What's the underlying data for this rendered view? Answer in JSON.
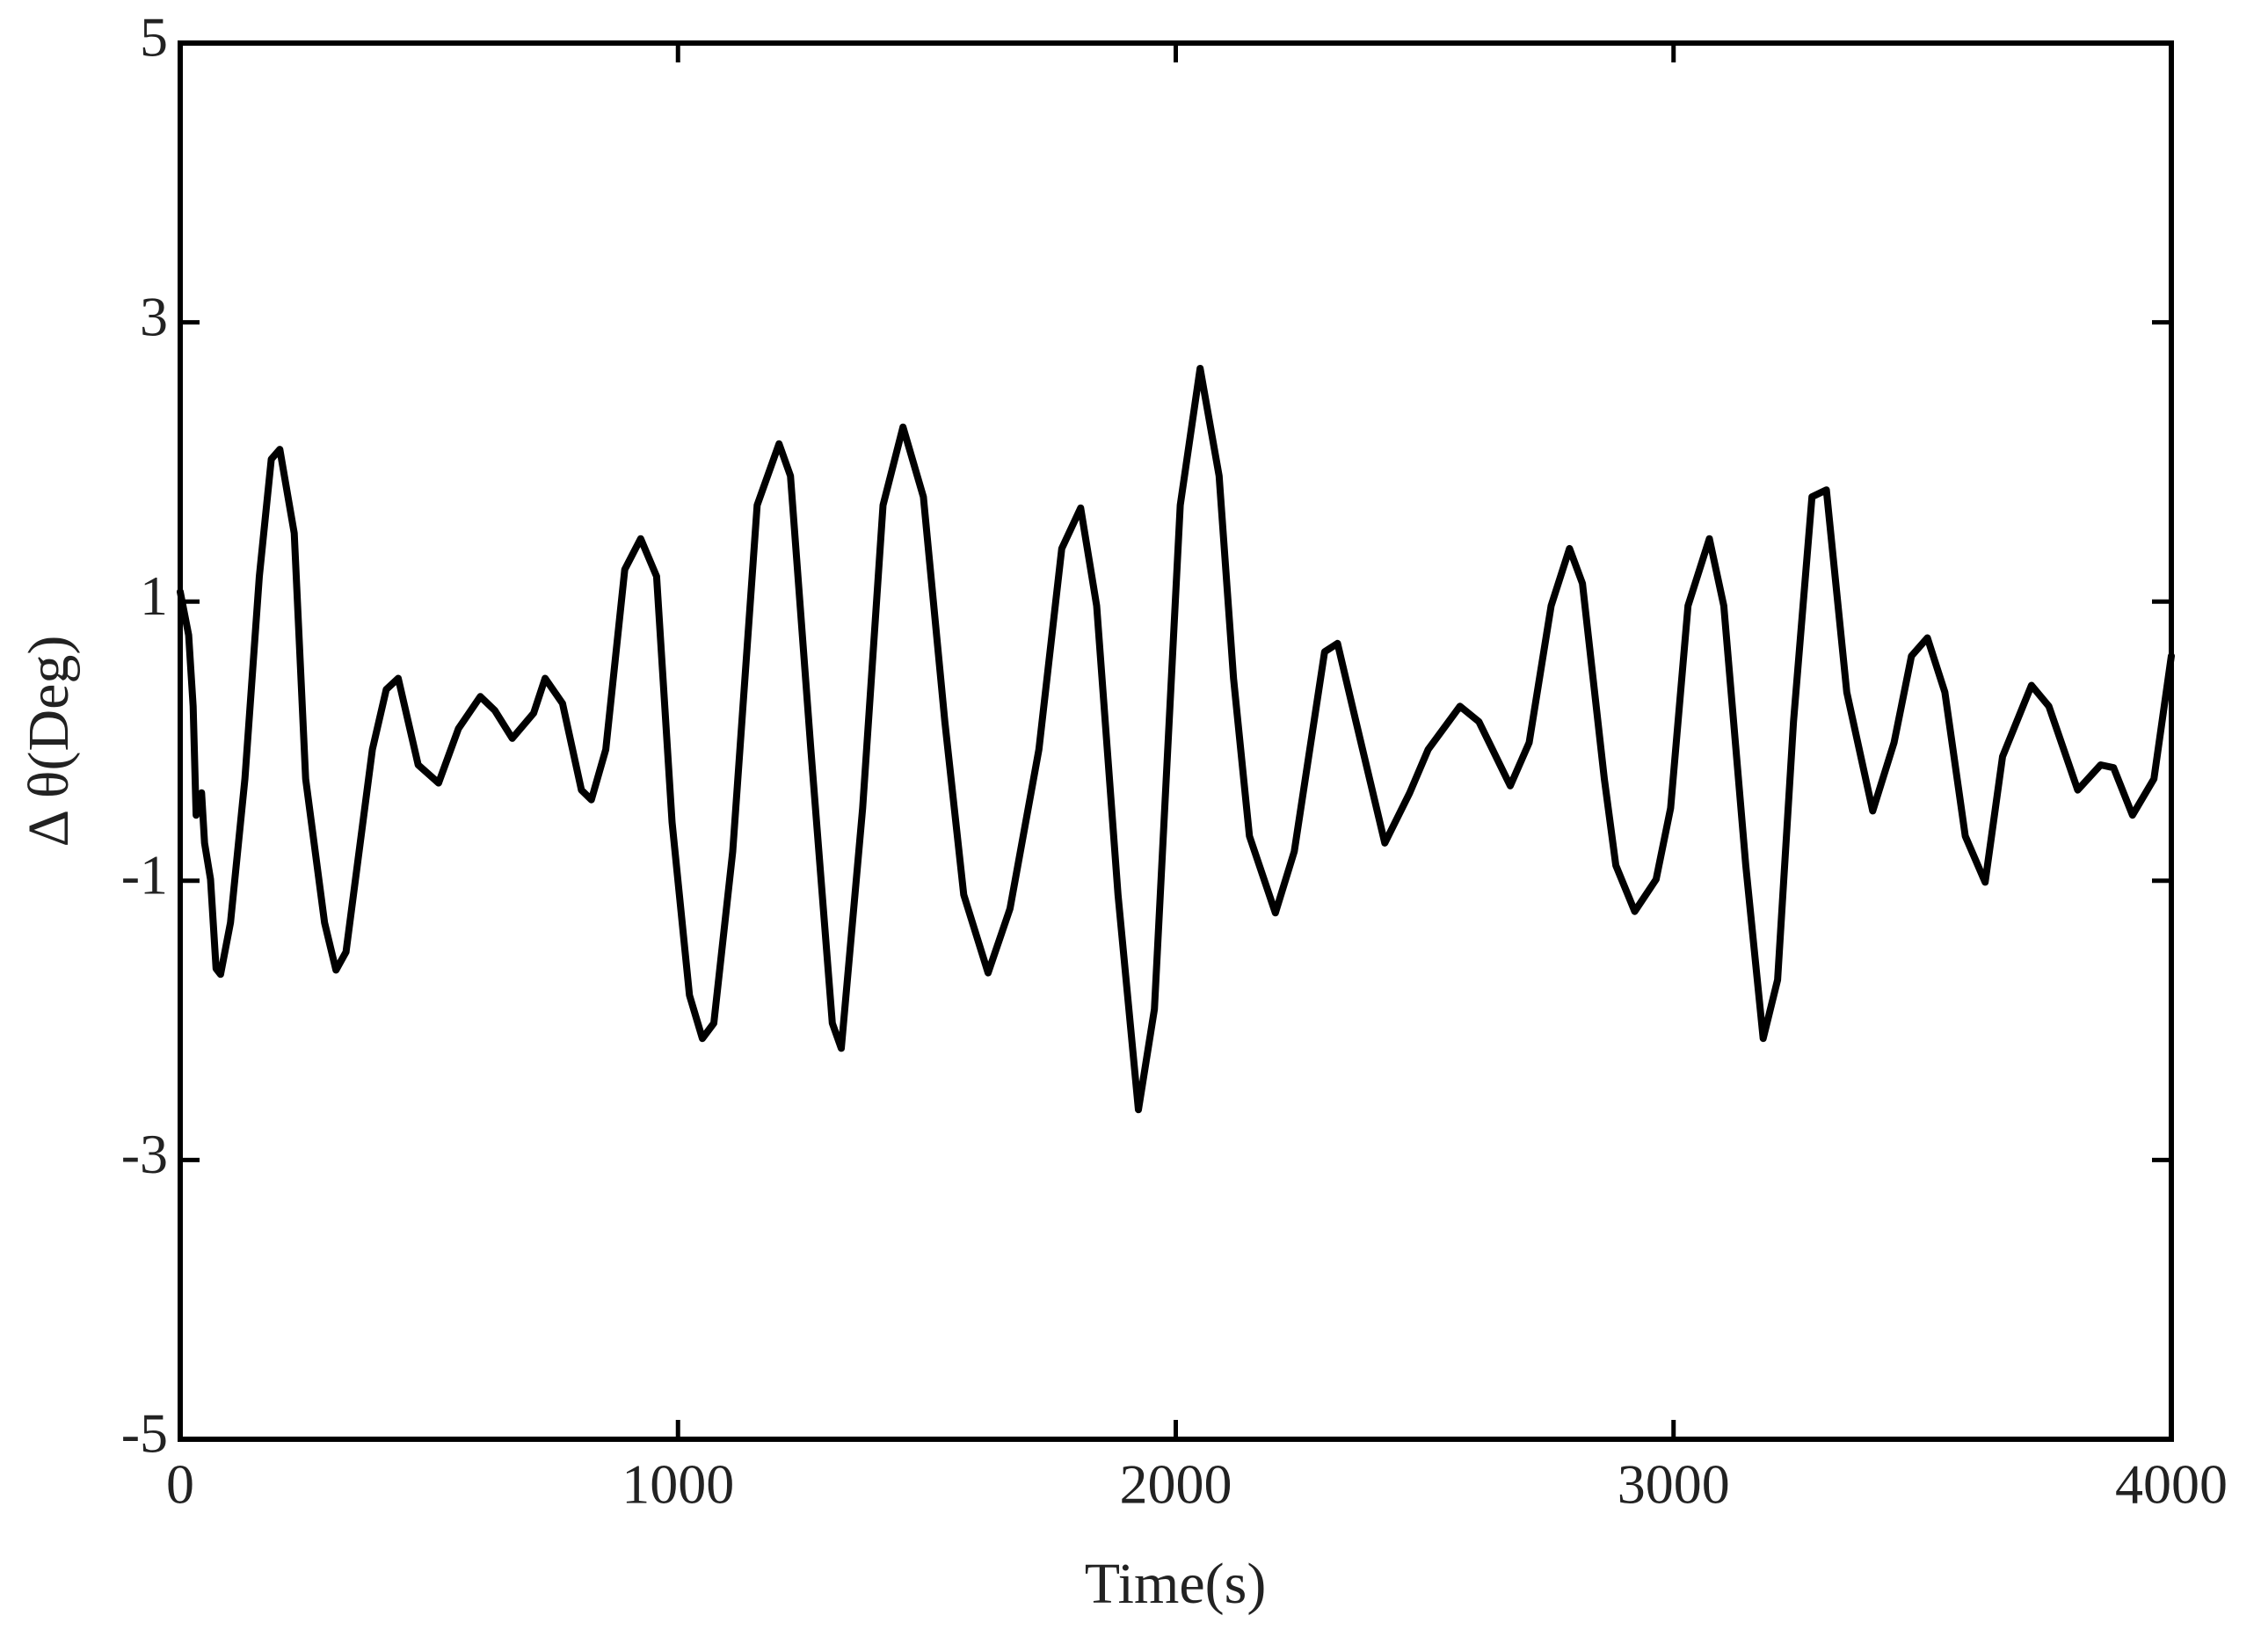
{
  "chart_data": {
    "type": "line",
    "xlabel": "Time(s)",
    "ylabel": "Δ θ(Deg)",
    "x": [
      0,
      17,
      26,
      32,
      43,
      49,
      61,
      72,
      81,
      101,
      130,
      159,
      183,
      200,
      229,
      252,
      290,
      313,
      333,
      386,
      414,
      438,
      478,
      519,
      559,
      603,
      632,
      667,
      710,
      733,
      768,
      806,
      826,
      855,
      893,
      925,
      957,
      988,
      1023,
      1049,
      1072,
      1110,
      1159,
      1203,
      1226,
      1267,
      1310,
      1328,
      1371,
      1412,
      1452,
      1493,
      1536,
      1574,
      1623,
      1667,
      1725,
      1771,
      1809,
      1841,
      1884,
      1925,
      1957,
      2009,
      2049,
      2087,
      2116,
      2148,
      2200,
      2238,
      2299,
      2325,
      2362,
      2420,
      2470,
      2507,
      2571,
      2609,
      2672,
      2710,
      2754,
      2791,
      2817,
      2861,
      2884,
      2922,
      2965,
      2994,
      3029,
      3072,
      3101,
      3145,
      3180,
      3209,
      3241,
      3278,
      3307,
      3348,
      3400,
      3443,
      3478,
      3510,
      3545,
      3586,
      3626,
      3661,
      3719,
      3754,
      3812,
      3858,
      3884,
      3922,
      3965,
      4000
    ],
    "series": [
      {
        "name": "Δθ",
        "color": "#000000",
        "values": [
          1.07,
          0.76,
          0.25,
          -0.53,
          -0.37,
          -0.73,
          -0.99,
          -1.63,
          -1.67,
          -1.3,
          -0.27,
          1.18,
          2.02,
          2.09,
          1.49,
          -0.27,
          -1.3,
          -1.64,
          -1.51,
          -0.06,
          0.37,
          0.45,
          -0.17,
          -0.3,
          0.09,
          0.32,
          0.22,
          0.02,
          0.2,
          0.45,
          0.27,
          -0.35,
          -0.42,
          -0.06,
          1.23,
          1.45,
          1.18,
          -0.58,
          -1.82,
          -2.13,
          -2.02,
          -0.79,
          1.69,
          2.13,
          1.9,
          -0.06,
          -2.02,
          -2.2,
          -0.48,
          1.69,
          2.25,
          1.75,
          0.14,
          -1.1,
          -1.66,
          -1.2,
          -0.06,
          1.38,
          1.67,
          0.97,
          -1.1,
          -2.64,
          -1.92,
          1.69,
          2.67,
          1.9,
          0.45,
          -0.68,
          -1.23,
          -0.79,
          0.64,
          0.7,
          0.14,
          -0.73,
          -0.37,
          -0.06,
          0.25,
          0.14,
          -0.32,
          -0.01,
          0.97,
          1.38,
          1.13,
          -0.27,
          -0.89,
          -1.22,
          -0.99,
          -0.48,
          0.97,
          1.45,
          0.97,
          -0.89,
          -2.13,
          -1.71,
          0.14,
          1.75,
          1.8,
          0.35,
          -0.5,
          -0.01,
          0.61,
          0.74,
          0.35,
          -0.68,
          -1.01,
          -0.11,
          0.4,
          0.25,
          -0.35,
          -0.17,
          -0.19,
          -0.53,
          -0.27,
          0.61
        ]
      }
    ],
    "xlim": [
      0,
      4000
    ],
    "xticks": [
      0,
      1000,
      2000,
      3000,
      4000
    ],
    "ylim": [
      -5,
      5
    ],
    "yticks": [
      -5,
      -3,
      -1,
      1,
      3,
      5
    ],
    "grid": false
  }
}
